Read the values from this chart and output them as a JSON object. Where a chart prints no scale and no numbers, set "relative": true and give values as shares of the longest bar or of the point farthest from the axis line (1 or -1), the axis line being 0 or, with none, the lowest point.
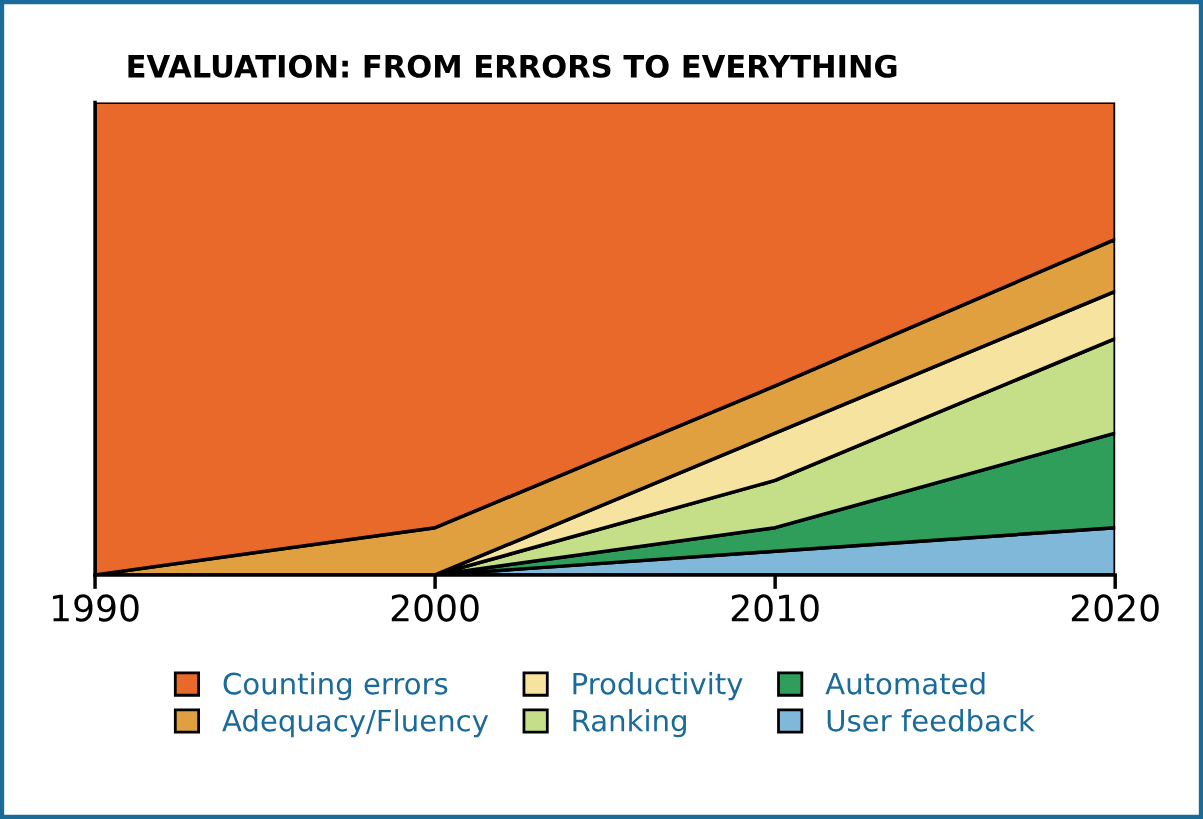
{
  "chart_data": {
    "type": "area",
    "title": "EVALUATION: FROM ERRORS TO EVERYTHING",
    "relative": true,
    "stacked": true,
    "x": [
      1990,
      2000,
      2010,
      2020
    ],
    "xlim": [
      1990,
      2020
    ],
    "xticks": [
      1990,
      2000,
      2010,
      2020
    ],
    "series": [
      {
        "name": "User feedback",
        "color": "#7fb8d8",
        "values": [
          0,
          0,
          0.05,
          0.1
        ]
      },
      {
        "name": "Automated",
        "color": "#2e9e5a",
        "values": [
          0,
          0,
          0.05,
          0.2
        ]
      },
      {
        "name": "Ranking",
        "color": "#c5df88",
        "values": [
          0,
          0,
          0.1,
          0.2
        ]
      },
      {
        "name": "Productivity",
        "color": "#f7e3a0",
        "values": [
          0,
          0,
          0.1,
          0.1
        ]
      },
      {
        "name": "Adequacy/Fluency",
        "color": "#e0a040",
        "values": [
          0,
          0.1,
          0.1,
          0.11
        ]
      },
      {
        "name": "Counting errors",
        "color": "#e8692a",
        "values": [
          1.0,
          0.9,
          0.6,
          0.29
        ]
      }
    ],
    "legend": "bottom",
    "grid": false
  }
}
